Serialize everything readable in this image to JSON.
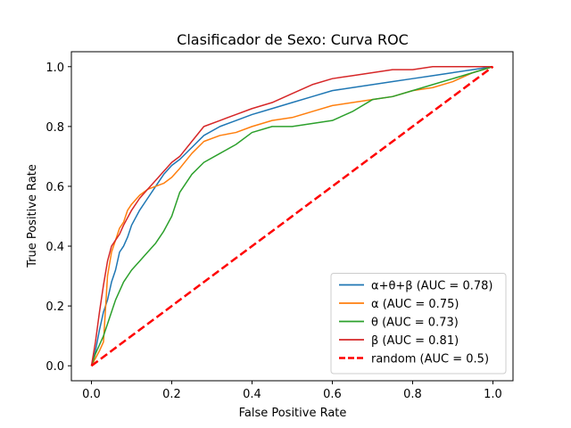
{
  "chart_data": {
    "type": "line",
    "title": "Clasificador de Sexo: Curva ROC",
    "xlabel": "False Positive Rate",
    "ylabel": "True Positive Rate",
    "xlim": [
      -0.05,
      1.05
    ],
    "ylim": [
      -0.05,
      1.05
    ],
    "xticks": [
      "0.0",
      "0.2",
      "0.4",
      "0.6",
      "0.8",
      "1.0"
    ],
    "yticks": [
      "0.0",
      "0.2",
      "0.4",
      "0.6",
      "0.8",
      "1.0"
    ],
    "grid": false,
    "legend_position": "lower-right",
    "series": [
      {
        "name": "α+θ+β (AUC = 0.78)",
        "color": "#1f77b4",
        "style": "solid",
        "x": [
          0,
          0.01,
          0.02,
          0.03,
          0.04,
          0.05,
          0.06,
          0.07,
          0.08,
          0.09,
          0.1,
          0.12,
          0.14,
          0.16,
          0.18,
          0.2,
          0.22,
          0.25,
          0.28,
          0.32,
          0.36,
          0.4,
          0.45,
          0.5,
          0.55,
          0.6,
          0.65,
          0.7,
          0.75,
          0.8,
          0.85,
          0.9,
          0.95,
          1.0
        ],
        "y": [
          0,
          0.05,
          0.12,
          0.18,
          0.22,
          0.28,
          0.32,
          0.38,
          0.4,
          0.43,
          0.47,
          0.52,
          0.56,
          0.6,
          0.64,
          0.67,
          0.69,
          0.73,
          0.77,
          0.8,
          0.82,
          0.84,
          0.86,
          0.88,
          0.9,
          0.92,
          0.93,
          0.94,
          0.95,
          0.96,
          0.97,
          0.98,
          0.99,
          1.0
        ]
      },
      {
        "name": "α (AUC = 0.75)",
        "color": "#ff7f0e",
        "style": "solid",
        "x": [
          0,
          0.02,
          0.03,
          0.04,
          0.05,
          0.06,
          0.07,
          0.08,
          0.09,
          0.1,
          0.12,
          0.14,
          0.16,
          0.18,
          0.2,
          0.22,
          0.25,
          0.28,
          0.32,
          0.36,
          0.4,
          0.45,
          0.5,
          0.55,
          0.6,
          0.65,
          0.7,
          0.75,
          0.8,
          0.85,
          0.9,
          0.95,
          1.0
        ],
        "y": [
          0,
          0.05,
          0.08,
          0.3,
          0.38,
          0.42,
          0.46,
          0.48,
          0.52,
          0.54,
          0.57,
          0.59,
          0.6,
          0.61,
          0.63,
          0.66,
          0.71,
          0.75,
          0.77,
          0.78,
          0.8,
          0.82,
          0.83,
          0.85,
          0.87,
          0.88,
          0.89,
          0.9,
          0.92,
          0.93,
          0.95,
          0.98,
          1.0
        ]
      },
      {
        "name": "θ (AUC = 0.73)",
        "color": "#2ca02c",
        "style": "solid",
        "x": [
          0,
          0.01,
          0.02,
          0.03,
          0.04,
          0.05,
          0.06,
          0.08,
          0.1,
          0.12,
          0.14,
          0.16,
          0.18,
          0.2,
          0.22,
          0.25,
          0.28,
          0.32,
          0.36,
          0.4,
          0.45,
          0.5,
          0.55,
          0.6,
          0.65,
          0.7,
          0.75,
          0.8,
          0.85,
          0.9,
          0.95,
          1.0
        ],
        "y": [
          0,
          0.04,
          0.07,
          0.1,
          0.14,
          0.18,
          0.22,
          0.28,
          0.32,
          0.35,
          0.38,
          0.41,
          0.45,
          0.5,
          0.58,
          0.64,
          0.68,
          0.71,
          0.74,
          0.78,
          0.8,
          0.8,
          0.81,
          0.82,
          0.85,
          0.89,
          0.9,
          0.92,
          0.94,
          0.96,
          0.98,
          1.0
        ]
      },
      {
        "name": "β (AUC = 0.81)",
        "color": "#d62728",
        "style": "solid",
        "x": [
          0,
          0.01,
          0.02,
          0.03,
          0.04,
          0.05,
          0.06,
          0.07,
          0.08,
          0.1,
          0.12,
          0.14,
          0.16,
          0.18,
          0.2,
          0.22,
          0.25,
          0.28,
          0.32,
          0.36,
          0.4,
          0.45,
          0.5,
          0.55,
          0.6,
          0.65,
          0.7,
          0.75,
          0.8,
          0.85,
          0.9,
          0.95,
          1.0
        ],
        "y": [
          0,
          0.08,
          0.18,
          0.27,
          0.35,
          0.4,
          0.42,
          0.44,
          0.47,
          0.52,
          0.56,
          0.59,
          0.62,
          0.65,
          0.68,
          0.7,
          0.75,
          0.8,
          0.82,
          0.84,
          0.86,
          0.88,
          0.91,
          0.94,
          0.96,
          0.97,
          0.98,
          0.99,
          0.99,
          1.0,
          1.0,
          1.0,
          1.0
        ]
      },
      {
        "name": "random (AUC = 0.5)",
        "color": "#ff0000",
        "style": "dashed",
        "x": [
          0,
          1
        ],
        "y": [
          0,
          1
        ]
      }
    ]
  }
}
